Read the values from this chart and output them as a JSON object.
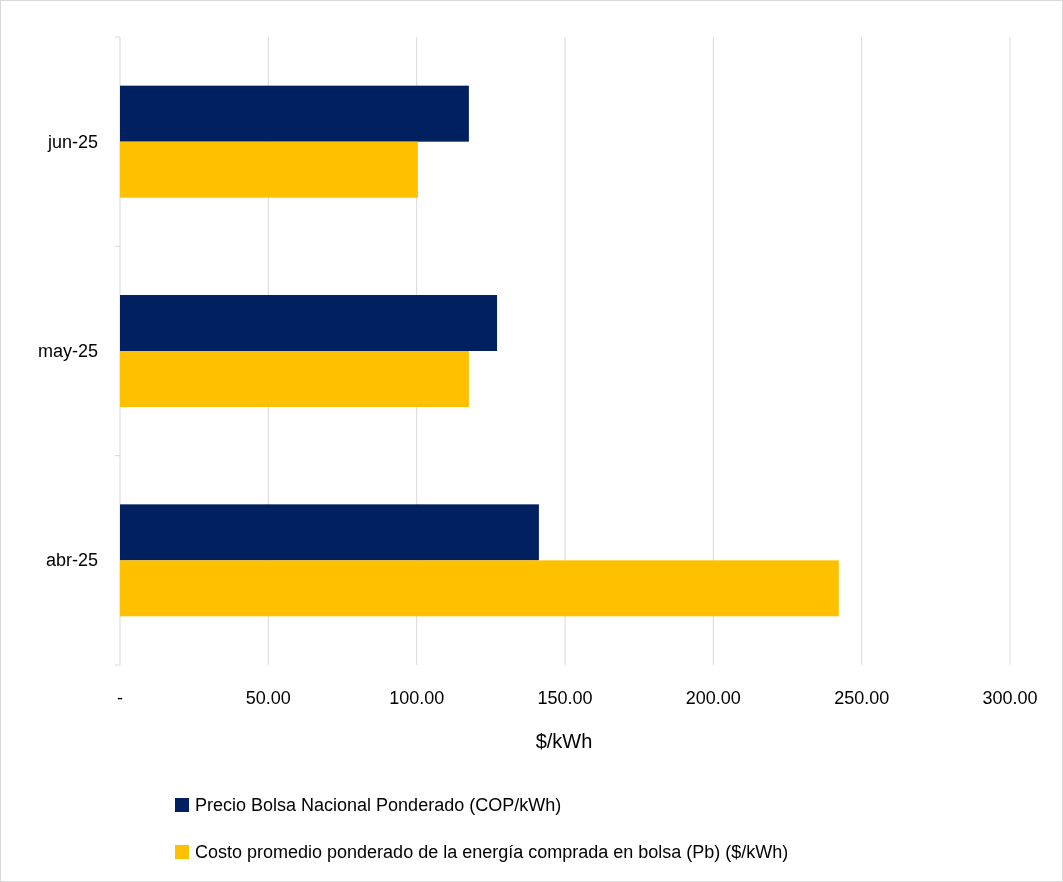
{
  "chart_data": {
    "type": "bar",
    "orientation": "horizontal",
    "xlabel": "$/kWh",
    "categories": [
      "jun-25",
      "may-25",
      "abr-25"
    ],
    "series": [
      {
        "name": "Precio Bolsa Nacional Ponderado (COP/kWh)",
        "color": "#002060",
        "values": [
          117.6,
          127.1,
          141.2
        ]
      },
      {
        "name": "Costo promedio ponderado de la energía comprada en bolsa (Pb)  ($/kWh)",
        "color": "#ffc000",
        "values": [
          100.4,
          117.6,
          242.3
        ]
      }
    ],
    "xlim": [
      0,
      300
    ],
    "xticks": [
      {
        "value": 0,
        "label": "-"
      },
      {
        "value": 50,
        "label": "50.00"
      },
      {
        "value": 100,
        "label": "100.00"
      },
      {
        "value": 150,
        "label": "150.00"
      },
      {
        "value": 200,
        "label": "200.00"
      },
      {
        "value": 250,
        "label": "250.00"
      },
      {
        "value": 300,
        "label": "300.00"
      }
    ],
    "grid": "x",
    "legend": "bottom"
  }
}
